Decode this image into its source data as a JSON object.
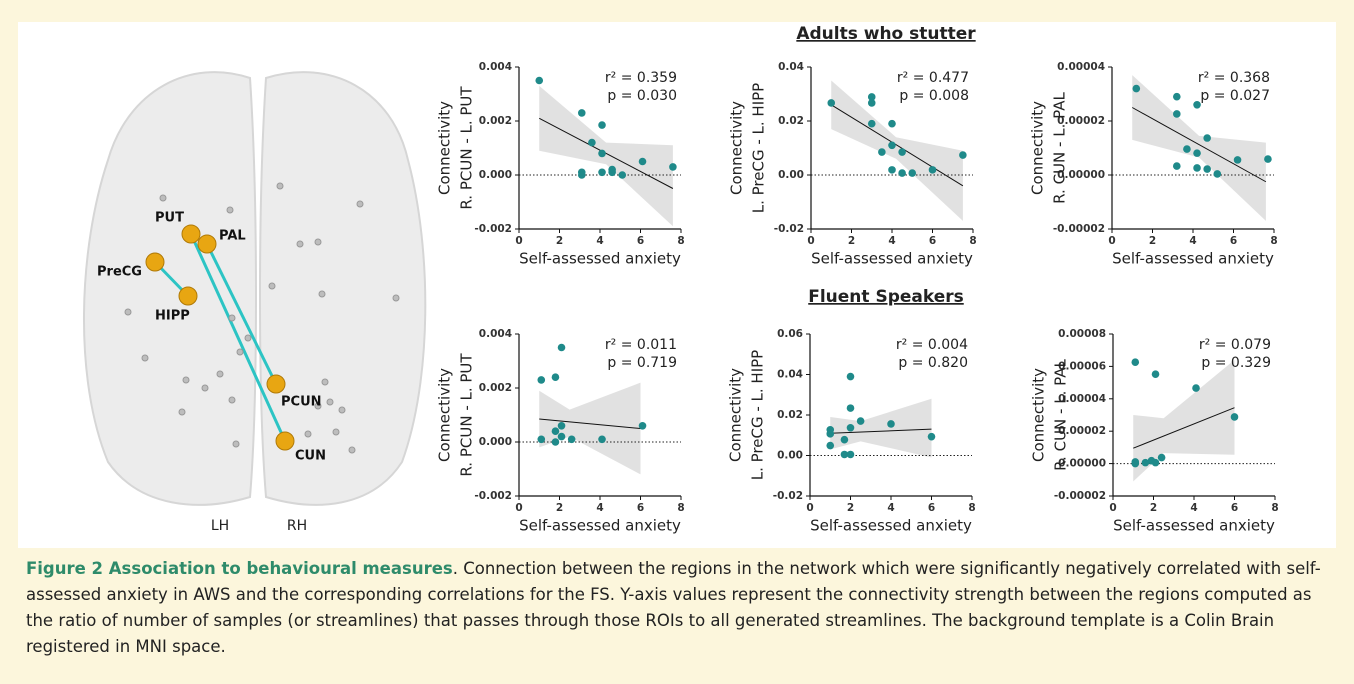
{
  "panel_titles": [
    "Adults who stutter",
    "Fluent Speakers"
  ],
  "brain": {
    "labels": [
      "PUT",
      "PAL",
      "PreCG",
      "HIPP",
      "PCUN",
      "CUN"
    ],
    "hemispheres": [
      "LH",
      "RH"
    ]
  },
  "caption": {
    "title": "Figure 2 Association to behavioural measures",
    "text": ". Connection between the regions in the network which were significantly negatively correlated with self-assessed anxiety in AWS and the corresponding correlations for the FS. Y-axis values represent the connectivity strength between the regions computed as the ratio of number of samples (or streamlines) that passes through those ROIs to all generated streamlines. The background template is a Colin Brain registered in MNI space."
  },
  "chart_data": [
    {
      "type": "scatter",
      "ylabel": [
        "Connectivity",
        "R. PCUN - L. PUT"
      ],
      "xlabel": "Self-assessed anxiety",
      "annotations": [
        "r² = 0.359",
        "p = 0.030"
      ],
      "color": "#1f8a8a",
      "zero_line": true,
      "xlim": [
        0,
        8
      ],
      "xticks": [
        0,
        2,
        4,
        6,
        8
      ],
      "ylim": [
        -0.002,
        0.004
      ],
      "yticks": [
        -0.002,
        {
          "value": 0,
          "label": "0.000"
        },
        0.002,
        0.004
      ],
      "x": [
        1,
        3.1,
        3.6,
        4.1,
        4.1,
        3.1,
        3.1,
        4.1,
        4.6,
        4.6,
        5.1,
        6.1,
        7.6
      ],
      "values": [
        0.0035,
        0.0023,
        0.0012,
        0.00185,
        0.0008,
        0.0001,
        0,
        0.0001,
        0.0002,
        0.0001,
        0,
        0.0005,
        0.0003
      ],
      "trend": {
        "x": [
          1,
          7.6
        ],
        "values": [
          0.0021,
          -0.0005
        ]
      },
      "ci": {
        "x": [
          1,
          4.3,
          7.6
        ],
        "lower": [
          0.0009,
          0.0004,
          -0.0019
        ],
        "upper": [
          0.0033,
          0.0012,
          0.0011
        ]
      }
    },
    {
      "type": "scatter",
      "ylabel": [
        "Connectivity",
        "L. PreCG - L. HIPP"
      ],
      "xlabel": "Self-assessed anxiety",
      "annotations": [
        "r² = 0.477",
        "p = 0.008"
      ],
      "color": "#1f8a8a",
      "zero_line": true,
      "xlim": [
        0,
        8
      ],
      "xticks": [
        0,
        2,
        4,
        6,
        8
      ],
      "ylim": [
        -0.02,
        0.04
      ],
      "yticks": [
        -0.02,
        {
          "value": 0,
          "label": "0.00"
        },
        0.02,
        0.04
      ],
      "x": [
        1,
        3,
        3,
        3,
        3.5,
        4,
        4,
        4,
        4.5,
        4.5,
        5,
        6,
        7.5
      ],
      "values": [
        0.0267,
        0.0289,
        0.0267,
        0.019,
        0.0085,
        0.019,
        0.011,
        0.0019,
        0.0085,
        0.0007,
        0.0007,
        0.0019,
        0.0074
      ],
      "trend": {
        "x": [
          1,
          7.5
        ],
        "values": [
          0.026,
          -0.004
        ]
      },
      "ci": {
        "x": [
          1,
          4.2,
          7.5
        ],
        "lower": [
          0.017,
          0.006,
          -0.017
        ],
        "upper": [
          0.035,
          0.014,
          0.009
        ]
      }
    },
    {
      "type": "scatter",
      "ylabel": [
        "Connectivity",
        "R. CUN - L. PAL"
      ],
      "xlabel": "Self-assessed anxiety",
      "annotations": [
        "r² = 0.368",
        "p = 0.027"
      ],
      "color": "#1f8a8a",
      "zero_line": true,
      "xlim": [
        0,
        8
      ],
      "xticks": [
        0,
        2,
        4,
        6,
        8
      ],
      "ylim": [
        -2e-05,
        4e-05
      ],
      "yticks": [
        -2e-05,
        {
          "value": 0,
          "label": "0.00000"
        },
        2e-05,
        4e-05
      ],
      "x": [
        1.2,
        3.2,
        3.2,
        3.2,
        3.7,
        4.2,
        4.2,
        4.2,
        4.7,
        4.7,
        5.2,
        6.2,
        7.7
      ],
      "values": [
        3.2e-05,
        2.9e-05,
        2.26e-05,
        3.3e-06,
        9.6e-06,
        2.6e-05,
        8.1e-06,
        2.6e-06,
        1.37e-05,
        2.2e-06,
        4e-07,
        5.6e-06,
        5.9e-06
      ],
      "trend": {
        "x": [
          1,
          7.6
        ],
        "values": [
          2.5e-05,
          -2.5e-06
        ]
      },
      "ci": {
        "x": [
          1,
          4.3,
          7.6
        ],
        "lower": [
          1.3e-05,
          6.5e-06,
          -1.7e-05
        ],
        "upper": [
          3.7e-05,
          1.45e-05,
          1.2e-05
        ]
      }
    },
    {
      "type": "scatter",
      "ylabel": [
        "Connectivity",
        "R. PCUN - L. PUT"
      ],
      "xlabel": "Self-assessed anxiety",
      "annotations": [
        "r² = 0.011",
        "p = 0.719"
      ],
      "color": "#1f8a8a",
      "zero_line": true,
      "xlim": [
        0,
        8
      ],
      "xticks": [
        0,
        2,
        4,
        6,
        8
      ],
      "ylim": [
        -0.002,
        0.004
      ],
      "yticks": [
        -0.002,
        {
          "value": 0,
          "label": "0.000"
        },
        0.002,
        0.004
      ],
      "x": [
        1.1,
        1.8,
        2.1,
        1.1,
        1.8,
        2.1,
        1.8,
        2.1,
        2.6,
        4.1,
        6.1
      ],
      "values": [
        0.0023,
        0.0024,
        0.0035,
        0.0001,
        0.0004,
        0.0006,
        0,
        0.0002,
        0.0001,
        0.0001,
        0.0006
      ],
      "trend": {
        "x": [
          1,
          6
        ],
        "values": [
          0.00085,
          0.0005
        ]
      },
      "ci": {
        "x": [
          1,
          2.5,
          6
        ],
        "lower": [
          -0.0002,
          0.0002,
          -0.0012
        ],
        "upper": [
          0.0019,
          0.0012,
          0.0022
        ]
      }
    },
    {
      "type": "scatter",
      "ylabel": [
        "Connectivity",
        "L. PreCG - L. HIPP"
      ],
      "xlabel": "Self-assessed anxiety",
      "annotations": [
        "r² = 0.004",
        "p = 0.820"
      ],
      "color": "#1f8a8a",
      "zero_line": true,
      "xlim": [
        0,
        8
      ],
      "xticks": [
        0,
        2,
        4,
        6,
        8
      ],
      "ylim": [
        -0.02,
        0.06
      ],
      "yticks": [
        -0.02,
        {
          "value": 0,
          "label": "0.00"
        },
        0.02,
        0.04,
        0.06
      ],
      "x": [
        1,
        1,
        1,
        1.7,
        2,
        2,
        2,
        1.7,
        2,
        2.5,
        4,
        6
      ],
      "values": [
        0.0127,
        0.0107,
        0.0049,
        0.0078,
        0.0137,
        0.039,
        0.0234,
        0.0005,
        0.0005,
        0.017,
        0.0156,
        0.0093
      ],
      "trend": {
        "x": [
          1,
          6
        ],
        "values": [
          0.011,
          0.013
        ]
      },
      "ci": {
        "x": [
          1,
          2.5,
          6
        ],
        "lower": [
          0.003,
          0.007,
          -0.001
        ],
        "upper": [
          0.019,
          0.017,
          0.028
        ]
      }
    },
    {
      "type": "scatter",
      "ylabel": [
        "Connectivity",
        "R. CUN - L. PAL"
      ],
      "xlabel": "Self-assessed anxiety",
      "annotations": [
        "r² = 0.079",
        "p = 0.329"
      ],
      "color": "#1f8a8a",
      "zero_line": true,
      "xlim": [
        0,
        8
      ],
      "xticks": [
        0,
        2,
        4,
        6,
        8
      ],
      "ylim": [
        -2e-05,
        8e-05
      ],
      "yticks": [
        -2e-05,
        {
          "value": 0,
          "label": "0.00000"
        },
        2e-05,
        4e-05,
        6e-05,
        8e-05
      ],
      "x": [
        1.1,
        2.1,
        4.1,
        6,
        1.1,
        1.1,
        1.6,
        1.9,
        2.1,
        2.4
      ],
      "values": [
        6.26e-05,
        5.52e-05,
        4.66e-05,
        2.88e-05,
        0,
        1e-06,
        6e-07,
        1.8e-06,
        6e-07,
        3.7e-06
      ],
      "trend": {
        "x": [
          1,
          6
        ],
        "values": [
          9.5e-06,
          3.45e-05
        ]
      },
      "ci": {
        "x": [
          1,
          2.5,
          6
        ],
        "lower": [
          -1.1e-05,
          6.5e-06,
          5.5e-06
        ],
        "upper": [
          3e-05,
          2.8e-05,
          6.4e-05
        ]
      }
    }
  ]
}
